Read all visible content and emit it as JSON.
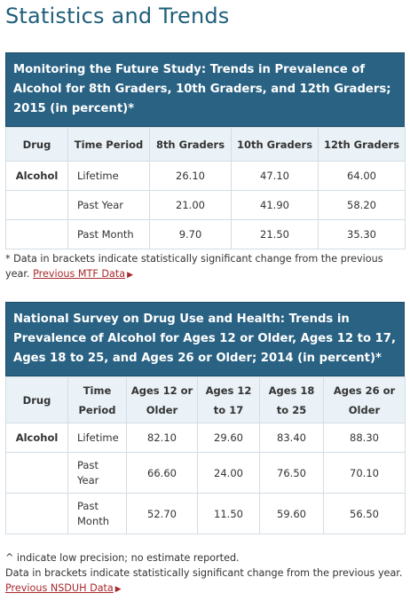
{
  "page_title": "Statistics and Trends",
  "mtf": {
    "caption": "Monitoring the Future Study: Trends in Prevalence of Alcohol for 8th Graders, 10th Graders, and 12th Graders; 2015 (in percent)*",
    "headers": [
      "Drug",
      "Time Period",
      "8th Graders",
      "10th Graders",
      "12th Graders"
    ],
    "drug": "Alcohol",
    "rows": [
      {
        "period": "Lifetime",
        "values": [
          "26.10",
          "47.10",
          "64.00"
        ]
      },
      {
        "period": "Past Year",
        "values": [
          "21.00",
          "41.90",
          "58.20"
        ]
      },
      {
        "period": "Past Month",
        "values": [
          "9.70",
          "21.50",
          "35.30"
        ]
      }
    ],
    "note": "* Data in brackets indicate statistically significant change from the previous year.",
    "link": "Previous MTF Data",
    "arrow": "▶"
  },
  "nsduh": {
    "caption": "National Survey on Drug Use and Health: Trends in Prevalence of Alcohol for Ages 12 or Older, Ages 12 to 17, Ages 18 to 25, and Ages 26 or Older; 2014 (in percent)*",
    "headers": [
      "Drug",
      "Time Period",
      "Ages 12 or Older",
      "Ages 12 to 17",
      "Ages 18 to 25",
      "Ages 26 or Older"
    ],
    "drug": "Alcohol",
    "rows": [
      {
        "period": "Lifetime",
        "values": [
          "82.10",
          "29.60",
          "83.40",
          "88.30"
        ]
      },
      {
        "period": "Past Year",
        "values": [
          "66.60",
          "24.00",
          "76.50",
          "70.10"
        ]
      },
      {
        "period": "Past Month",
        "values": [
          "52.70",
          "11.50",
          "59.60",
          "56.50"
        ]
      }
    ],
    "note1": "^ indicate low precision; no estimate reported.",
    "note2": "Data in brackets indicate statistically significant change from the previous year.",
    "link": "Previous NSDUH Data",
    "arrow": "▶"
  }
}
